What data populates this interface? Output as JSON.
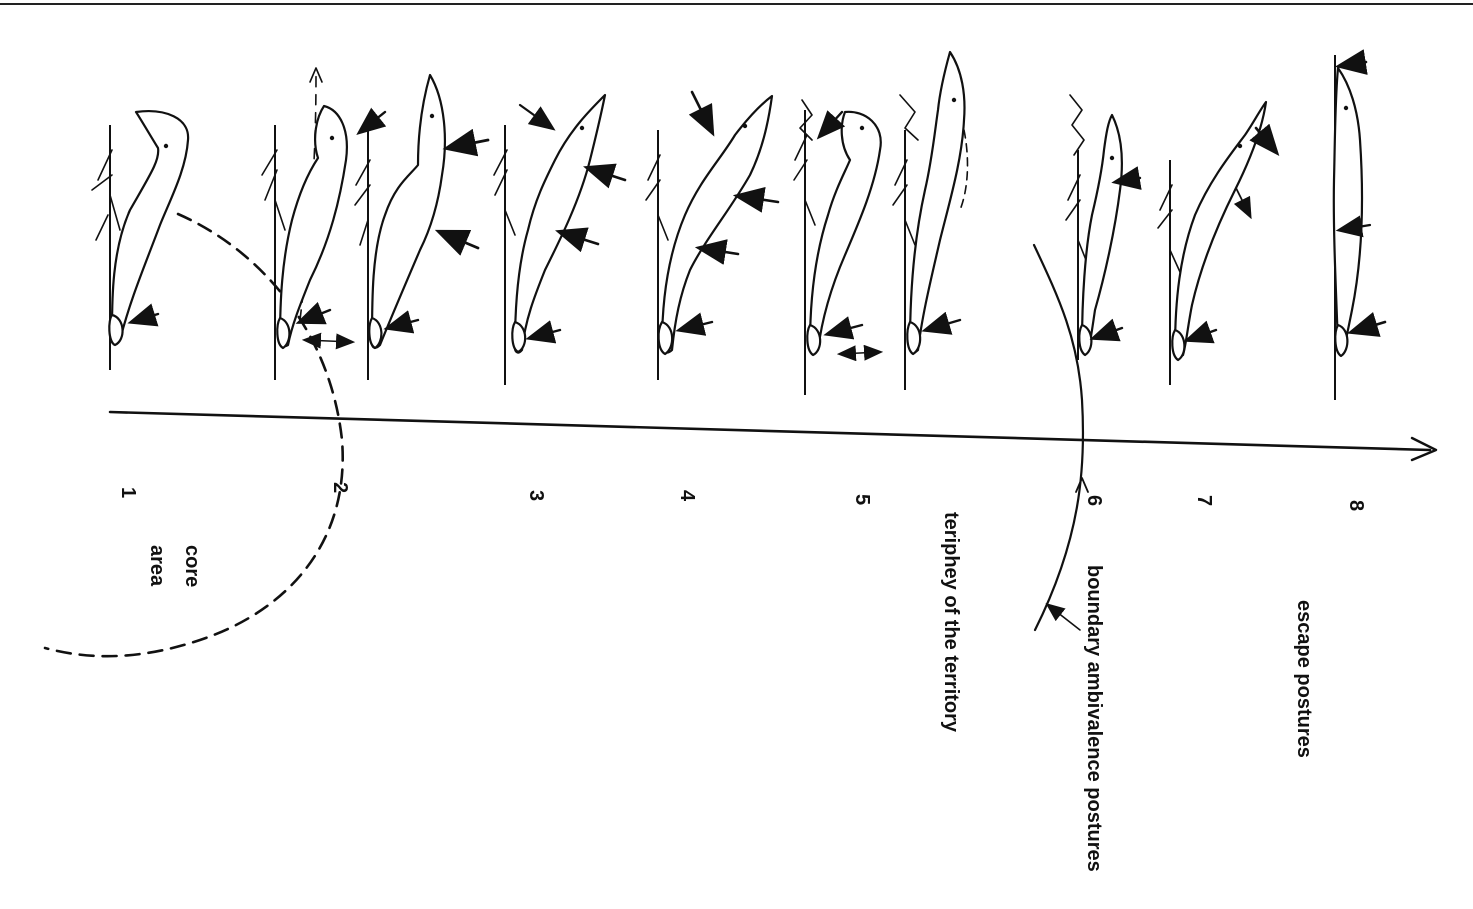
{
  "figure": {
    "posture_numbers": [
      "1",
      "2",
      "3",
      "4",
      "5",
      "6",
      "7",
      "8"
    ],
    "labels": {
      "core_area_line1": "core",
      "core_area_line2": "area",
      "periphery": "teriphey of the territory",
      "boundary": "boundary ambivalence postures",
      "escape": "escape postures"
    },
    "colors": {
      "ink": "#111111",
      "paper": "#ffffff"
    },
    "icons": [
      "bird-posture-drawing",
      "reed-stem",
      "pressure-arrow",
      "axis-arrow"
    ]
  }
}
